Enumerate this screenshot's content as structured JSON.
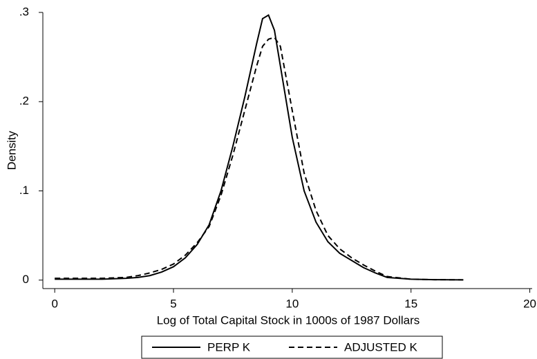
{
  "chart_data": {
    "type": "line",
    "x_label": "Log of Total Capital Stock in 1000s of 1987 Dollars",
    "y_label": "Density",
    "x": [
      0,
      1,
      2,
      3,
      3.5,
      4,
      4.5,
      5,
      5.5,
      6,
      6.5,
      7,
      7.5,
      8,
      8.5,
      8.75,
      9,
      9.25,
      9.5,
      10,
      10.5,
      11,
      11.5,
      12,
      12.5,
      13,
      13.5,
      14,
      15,
      16,
      17.2
    ],
    "series": [
      {
        "name": "PERP K",
        "color": "#000000",
        "dash": "solid",
        "values": [
          0.001,
          0.001,
          0.001,
          0.002,
          0.003,
          0.005,
          0.009,
          0.015,
          0.025,
          0.04,
          0.062,
          0.1,
          0.15,
          0.205,
          0.265,
          0.293,
          0.297,
          0.28,
          0.24,
          0.16,
          0.1,
          0.065,
          0.043,
          0.03,
          0.022,
          0.014,
          0.008,
          0.003,
          0.001,
          0.0005,
          0.0003
        ]
      },
      {
        "name": "ADJUSTED K",
        "color": "#000000",
        "dash": "dashed",
        "values": [
          0.002,
          0.002,
          0.002,
          0.003,
          0.005,
          0.008,
          0.012,
          0.018,
          0.028,
          0.042,
          0.06,
          0.095,
          0.14,
          0.19,
          0.24,
          0.262,
          0.27,
          0.272,
          0.262,
          0.19,
          0.12,
          0.078,
          0.05,
          0.035,
          0.025,
          0.017,
          0.01,
          0.004,
          0.001,
          0.0005,
          0.0003
        ]
      }
    ],
    "xlim": [
      -0.5,
      20.1
    ],
    "xticks": [
      0,
      5,
      10,
      15,
      20
    ],
    "ylim": [
      -0.0095,
      0.3
    ],
    "yticks": [
      {
        "value": 0,
        "label": "0"
      },
      {
        "value": 0.1,
        "label": ".1"
      },
      {
        "value": 0.2,
        "label": ".2"
      },
      {
        "value": 0.3,
        "label": ".3"
      }
    ],
    "legend": "bottom"
  }
}
